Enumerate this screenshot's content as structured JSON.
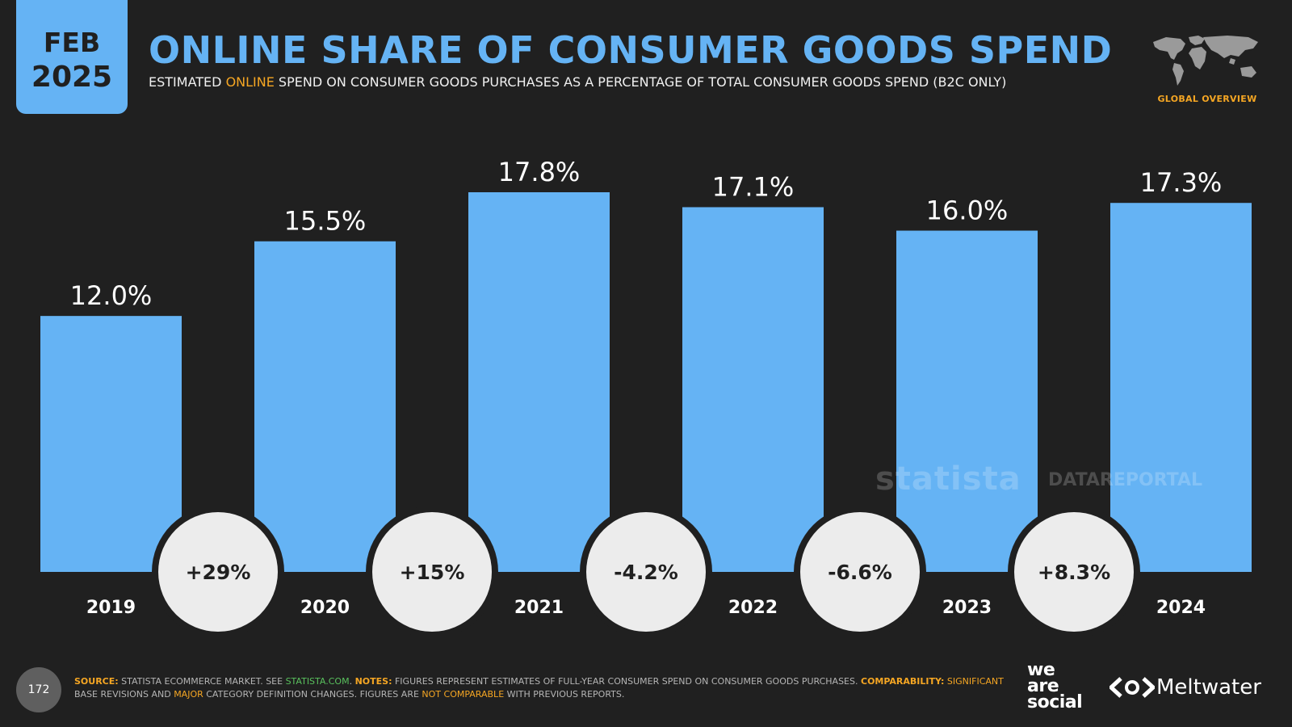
{
  "header": {
    "date_month": "FEB",
    "date_year": "2025",
    "title": "ONLINE SHARE OF CONSUMER GOODS SPEND",
    "subtitle_pre": "ESTIMATED ",
    "subtitle_highlight": "ONLINE",
    "subtitle_post": " SPEND ON CONSUMER GOODS PURCHASES AS A PERCENTAGE OF TOTAL CONSUMER GOODS SPEND (B2C ONLY)",
    "region_label": "GLOBAL OVERVIEW",
    "map_icon": "world-map-icon"
  },
  "chart_data": {
    "type": "bar",
    "categories": [
      "2019",
      "2020",
      "2021",
      "2022",
      "2023",
      "2024"
    ],
    "values": [
      12.0,
      15.5,
      17.8,
      17.1,
      16.0,
      17.3
    ],
    "value_labels": [
      "12.0%",
      "15.5%",
      "17.8%",
      "17.1%",
      "16.0%",
      "17.3%"
    ],
    "changes": [
      "+29%",
      "+15%",
      "-4.2%",
      "-6.6%",
      "+8.3%"
    ],
    "ylim": [
      0,
      17.8
    ],
    "bar_color": "#65b3f4",
    "grid": false,
    "legend": "none"
  },
  "watermarks": {
    "statista": "statista",
    "datareportal": "DATAREPORTAL"
  },
  "footer": {
    "page_number": "172",
    "source_label": "SOURCE:",
    "source_text": " STATISTA ECOMMERCE MARKET. SEE ",
    "source_link": "STATISTA.COM",
    "source_end": ". ",
    "notes_label": "NOTES:",
    "notes_text": " FIGURES REPRESENT ESTIMATES OF FULL-YEAR CONSUMER SPEND ON CONSUMER GOODS PURCHASES. ",
    "comparability_label": "COMPARABILITY:",
    "comp_hl1": " SIGNIFICANT",
    "comp_text1": " BASE REVISIONS AND ",
    "comp_hl2": "MAJOR",
    "comp_text2": " CATEGORY DEFINITION CHANGES. FIGURES ARE ",
    "comp_hl3": "NOT COMPARABLE",
    "comp_text3": " WITH PREVIOUS REPORTS."
  },
  "logos": {
    "we": "we",
    "are": "are",
    "social": "social",
    "meltwater": "Meltwater"
  },
  "colors": {
    "background": "#202020",
    "accent": "#65b3f4",
    "highlight": "#f5a623",
    "circle": "#ececec"
  }
}
